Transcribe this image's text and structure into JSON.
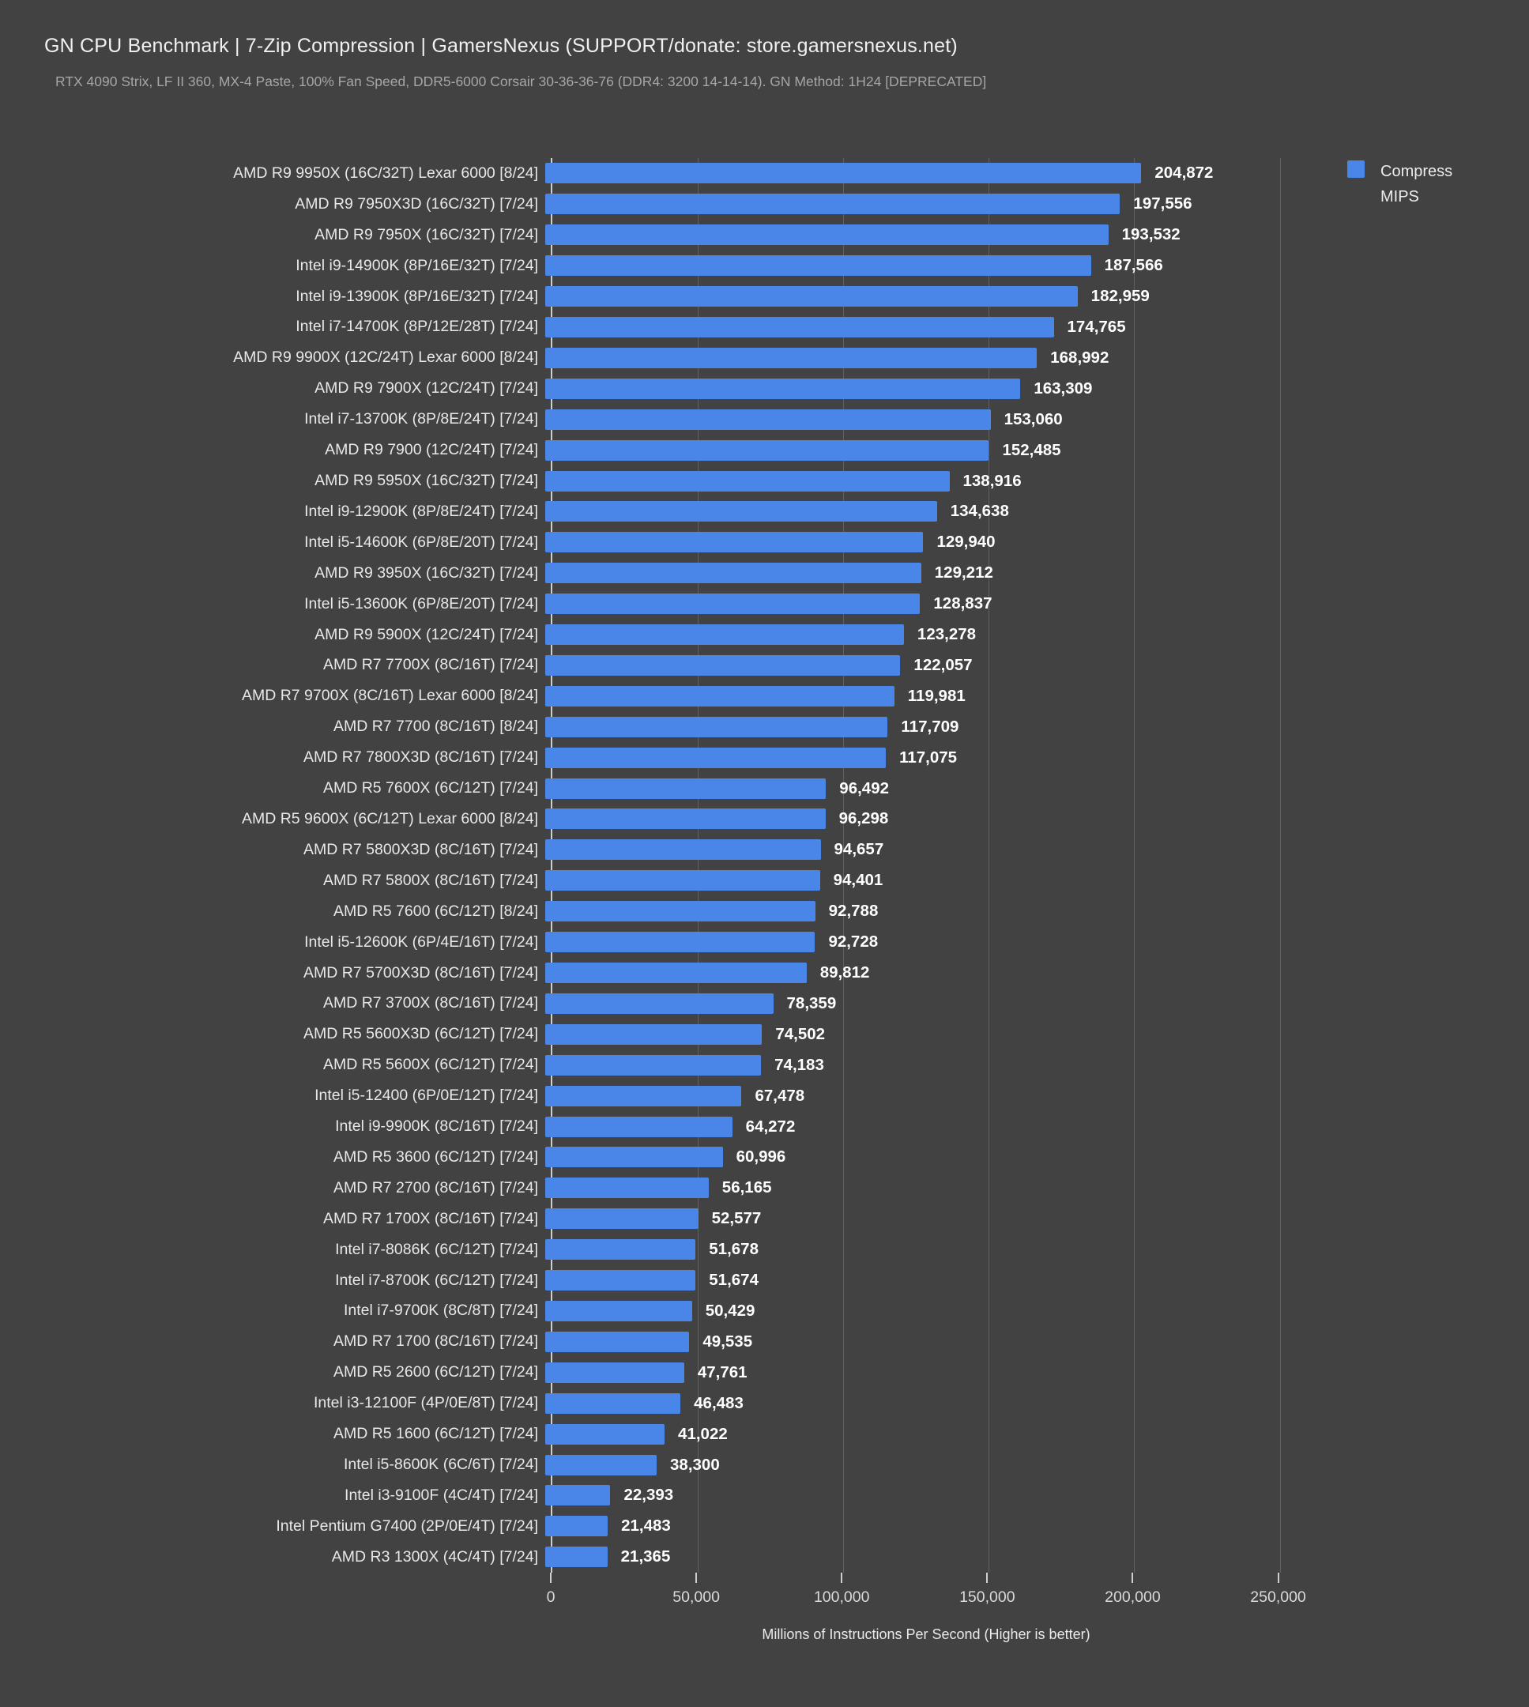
{
  "title": "GN CPU Benchmark | 7-Zip Compression | GamersNexus (SUPPORT/donate: store.gamersnexus.net)",
  "subtitle": "RTX 4090 Strix, LF II 360, MX-4 Paste, 100% Fan Speed, DDR5-6000 Corsair 30-36-36-76 (DDR4: 3200 14-14-14). GN Method: 1H24 [DEPRECATED]",
  "legend": {
    "label": "Compress MIPS",
    "swatch_color": "#4a86e8"
  },
  "colors": {
    "background": "#424242",
    "bar": "#4a86e8",
    "gridline": "#606060",
    "axis": "#cfcfcf",
    "title_text": "#f1f1f1",
    "subtitle_text": "#a6a6a6",
    "label_text": "#e8e8e8",
    "value_text": "#ffffff"
  },
  "chart_data": {
    "type": "bar",
    "orientation": "horizontal",
    "title": "GN CPU Benchmark | 7-Zip Compression | GamersNexus (SUPPORT/donate: store.gamersnexus.net)",
    "subtitle": "RTX 4090 Strix, LF II 360, MX-4 Paste, 100% Fan Speed, DDR5-6000 Corsair 30-36-36-76 (DDR4: 3200 14-14-14). GN Method: 1H24 [DEPRECATED]",
    "series_name": "Compress MIPS",
    "xlabel": "Millions of Instructions Per Second (Higher is better)",
    "xlim": [
      0,
      258000
    ],
    "grid": true,
    "legend_position": "top-right",
    "x_ticks": [
      0,
      50000,
      100000,
      150000,
      200000,
      250000
    ],
    "x_tick_labels": [
      "0",
      "50,000",
      "100,000",
      "150,000",
      "200,000",
      "250,000"
    ],
    "categories": [
      "AMD R9 9950X (16C/32T) Lexar 6000 [8/24]",
      "AMD R9 7950X3D (16C/32T) [7/24]",
      "AMD R9 7950X (16C/32T) [7/24]",
      "Intel i9-14900K (8P/16E/32T) [7/24]",
      "Intel i9-13900K (8P/16E/32T) [7/24]",
      "Intel i7-14700K (8P/12E/28T) [7/24]",
      "AMD R9 9900X (12C/24T) Lexar 6000 [8/24]",
      "AMD R9 7900X (12C/24T) [7/24]",
      "Intel i7-13700K (8P/8E/24T) [7/24]",
      "AMD R9 7900 (12C/24T) [7/24]",
      "AMD R9 5950X (16C/32T) [7/24]",
      "Intel i9-12900K (8P/8E/24T) [7/24]",
      "Intel i5-14600K (6P/8E/20T) [7/24]",
      "AMD R9 3950X (16C/32T) [7/24]",
      "Intel i5-13600K (6P/8E/20T) [7/24]",
      "AMD R9 5900X (12C/24T) [7/24]",
      "AMD R7 7700X (8C/16T) [7/24]",
      "AMD R7 9700X (8C/16T) Lexar 6000 [8/24]",
      "AMD R7 7700 (8C/16T) [8/24]",
      "AMD R7 7800X3D (8C/16T) [7/24]",
      "AMD R5 7600X (6C/12T) [7/24]",
      "AMD R5 9600X (6C/12T) Lexar 6000 [8/24]",
      "AMD R7 5800X3D (8C/16T) [7/24]",
      "AMD R7 5800X (8C/16T) [7/24]",
      "AMD R5 7600 (6C/12T) [8/24]",
      "Intel i5-12600K (6P/4E/16T) [7/24]",
      "AMD R7 5700X3D (8C/16T) [7/24]",
      "AMD R7 3700X (8C/16T) [7/24]",
      "AMD R5 5600X3D (6C/12T) [7/24]",
      "AMD R5 5600X (6C/12T) [7/24]",
      "Intel i5-12400 (6P/0E/12T) [7/24]",
      "Intel i9-9900K (8C/16T) [7/24]",
      "AMD R5 3600 (6C/12T) [7/24]",
      "AMD R7 2700 (8C/16T) [7/24]",
      "AMD R7 1700X (8C/16T) [7/24]",
      "Intel i7-8086K (6C/12T) [7/24]",
      "Intel i7-8700K (6C/12T) [7/24]",
      "Intel i7-9700K (8C/8T) [7/24]",
      "AMD R7 1700 (8C/16T) [7/24]",
      "AMD R5 2600 (6C/12T) [7/24]",
      "Intel i3-12100F (4P/0E/8T) [7/24]",
      "AMD R5 1600 (6C/12T) [7/24]",
      "Intel i5-8600K (6C/6T) [7/24]",
      "Intel i3-9100F (4C/4T) [7/24]",
      "Intel Pentium G7400 (2P/0E/4T) [7/24]",
      "AMD R3 1300X (4C/4T) [7/24]"
    ],
    "values": [
      204872,
      197556,
      193532,
      187566,
      182959,
      174765,
      168992,
      163309,
      153060,
      152485,
      138916,
      134638,
      129940,
      129212,
      128837,
      123278,
      122057,
      119981,
      117709,
      117075,
      96492,
      96298,
      94657,
      94401,
      92788,
      92728,
      89812,
      78359,
      74502,
      74183,
      67478,
      64272,
      60996,
      56165,
      52577,
      51678,
      51674,
      50429,
      49535,
      47761,
      46483,
      41022,
      38300,
      22393,
      21483,
      21365
    ],
    "value_labels": [
      "204,872",
      "197,556",
      "193,532",
      "187,566",
      "182,959",
      "174,765",
      "168,992",
      "163,309",
      "153,060",
      "152,485",
      "138,916",
      "134,638",
      "129,940",
      "129,212",
      "128,837",
      "123,278",
      "122,057",
      "119,981",
      "117,709",
      "117,075",
      "96,492",
      "96,298",
      "94,657",
      "94,401",
      "92,788",
      "92,728",
      "89,812",
      "78,359",
      "74,502",
      "74,183",
      "67,478",
      "64,272",
      "60,996",
      "56,165",
      "52,577",
      "51,678",
      "51,674",
      "50,429",
      "49,535",
      "47,761",
      "46,483",
      "41,022",
      "38,300",
      "22,393",
      "21,483",
      "21,365"
    ]
  }
}
